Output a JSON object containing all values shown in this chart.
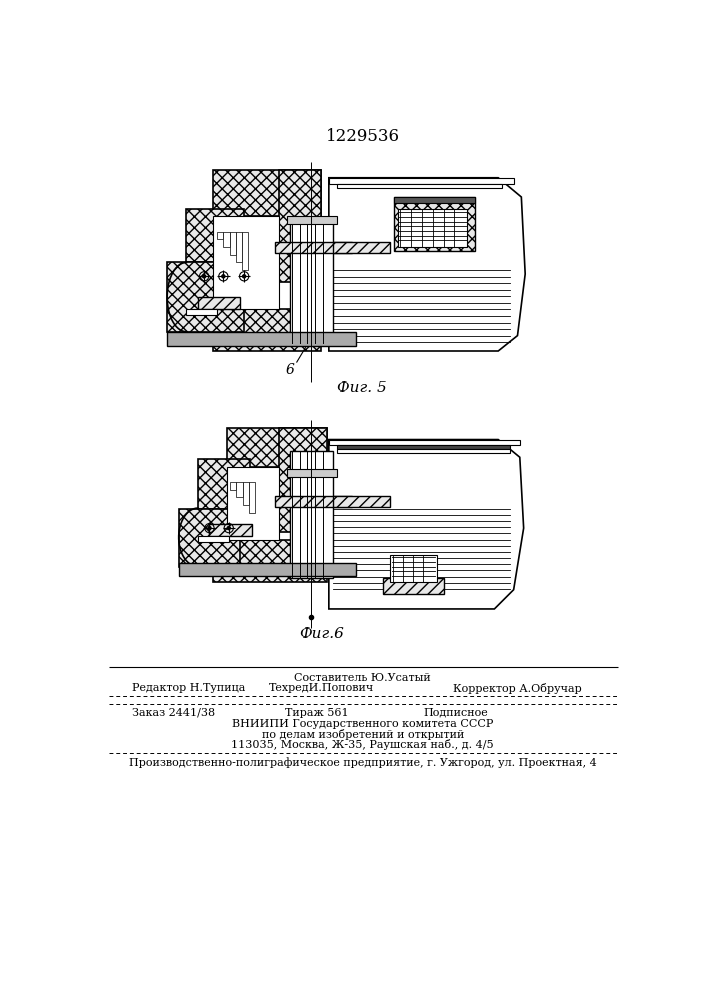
{
  "patent_number": "1229536",
  "fig5_label": "Фиг. 5",
  "fig6_label": "Фиг.6",
  "label_6": "6",
  "footer_line1_top": "Составитель Ю.Усатый",
  "footer_line1_left": "Редактор Н.Тупица",
  "footer_line1_center": "ТехредИ.Попович",
  "footer_line1_right": "Корректор А.Обручар",
  "footer_line2_col1": "Заказ 2441/38",
  "footer_line2_col2": "Тираж 561",
  "footer_line2_col3": "Подписное",
  "footer_line3": "ВНИИПИ Государственного комитета СССР",
  "footer_line4": "по делам изобретений и открытий",
  "footer_line5": "113035, Москва, Ж-35, Раушская наб., д. 4/5",
  "footer_line6": "Производственно-полиграфическое предприятие, г. Ужгород, ул. Проектная, 4"
}
